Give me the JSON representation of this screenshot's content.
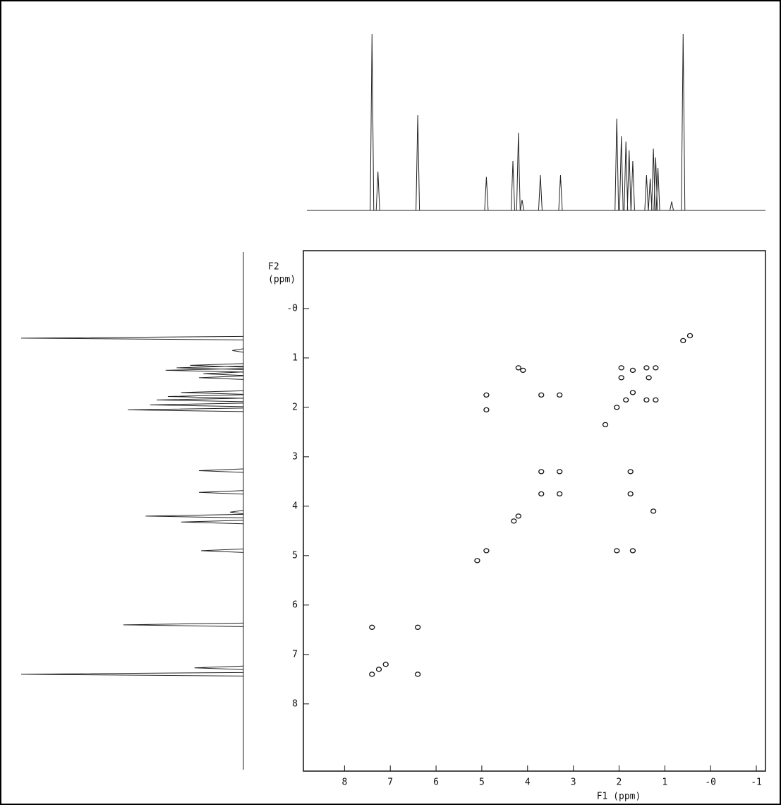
{
  "chart_data": {
    "type": "scatter",
    "x_label": "F1 (ppm)",
    "y_label_lines": [
      "F2",
      "(ppm)"
    ],
    "xlim": [
      8.9,
      -1.2
    ],
    "ylim": [
      -1.17,
      9.36
    ],
    "xticks": [
      8,
      7,
      6,
      5,
      4,
      3,
      2,
      1,
      {
        "value": 0,
        "label": "-0"
      },
      -1
    ],
    "yticks": [
      {
        "value": 0,
        "label": "-0"
      },
      1,
      2,
      3,
      4,
      5,
      6,
      7,
      8
    ],
    "color": "#111111",
    "x": [
      7.4,
      6.4,
      4.9,
      4.3,
      4.2,
      3.7,
      3.3,
      2.05,
      1.85,
      1.7,
      1.35,
      1.2,
      0.6,
      7.4,
      6.4,
      4.9,
      4.9,
      3.7,
      3.3,
      3.7,
      3.3,
      1.75,
      1.75,
      2.05,
      1.7,
      1.25,
      1.95,
      1.95,
      1.4,
      1.4,
      1.2,
      1.7,
      4.2,
      4.1,
      7.25,
      7.1,
      5.1,
      2.3,
      0.45
    ],
    "y": [
      7.4,
      6.45,
      4.9,
      4.3,
      4.2,
      3.75,
      3.3,
      2.0,
      1.85,
      1.7,
      1.4,
      1.2,
      0.65,
      6.45,
      7.4,
      1.75,
      2.05,
      1.75,
      1.75,
      3.3,
      3.75,
      3.3,
      3.75,
      4.9,
      4.9,
      4.1,
      1.2,
      1.4,
      1.2,
      1.85,
      1.85,
      1.25,
      1.2,
      1.25,
      7.3,
      7.2,
      5.1,
      2.35,
      0.55
    ],
    "projection": {
      "ppm": [
        7.4,
        7.27,
        6.4,
        4.9,
        4.32,
        4.2,
        4.12,
        3.72,
        3.28,
        2.05,
        1.95,
        1.85,
        1.78,
        1.7,
        1.4,
        1.32,
        1.25,
        1.2,
        1.15,
        0.85,
        0.6
      ],
      "heights": [
        100,
        22,
        54,
        19,
        28,
        44,
        6,
        20,
        20,
        52,
        42,
        39,
        34,
        28,
        20,
        18,
        35,
        30,
        24,
        5,
        100
      ]
    }
  }
}
